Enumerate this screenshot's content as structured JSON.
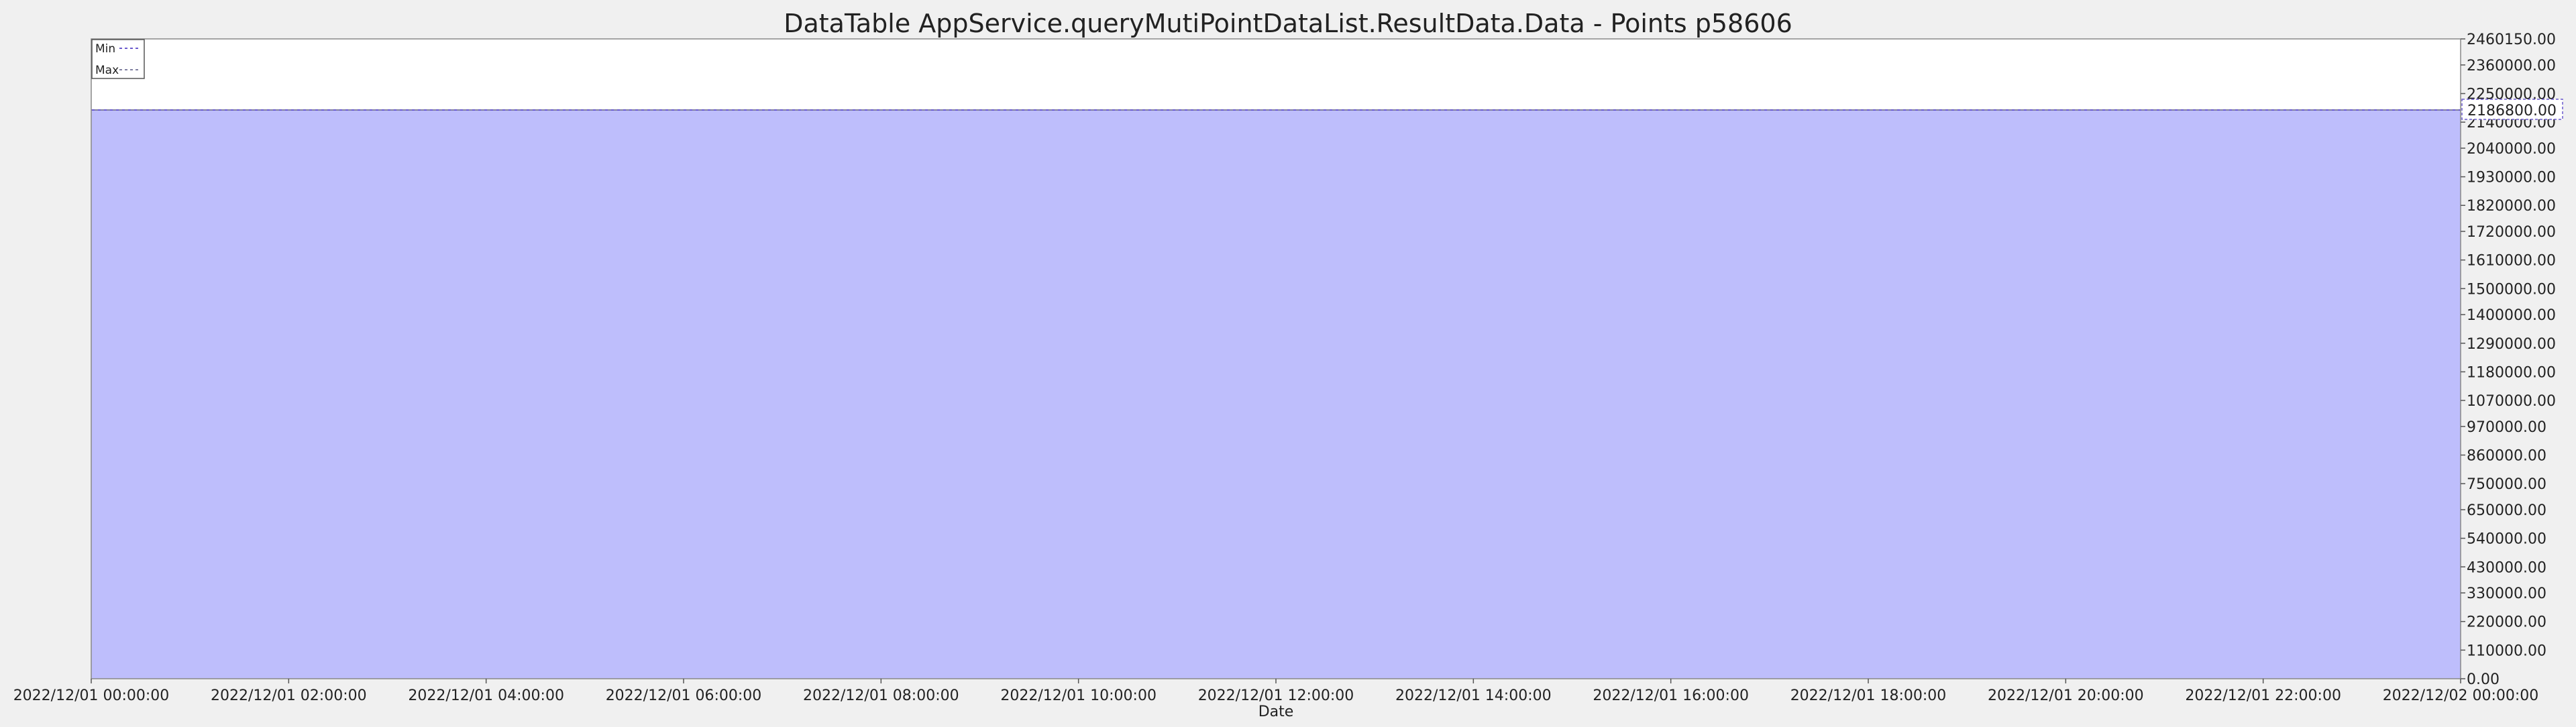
{
  "chart_data": {
    "type": "area",
    "title": "DataTable AppService.queryMutiPointDataList.ResultData.Data - Points p58606",
    "xlabel": "Date",
    "ylabel": "",
    "x_ticks": [
      "2022/12/01 00:00:00",
      "2022/12/01 02:00:00",
      "2022/12/01 04:00:00",
      "2022/12/01 06:00:00",
      "2022/12/01 08:00:00",
      "2022/12/01 10:00:00",
      "2022/12/01 12:00:00",
      "2022/12/01 14:00:00",
      "2022/12/01 16:00:00",
      "2022/12/01 18:00:00",
      "2022/12/01 20:00:00",
      "2022/12/01 22:00:00",
      "2022/12/02 00:00:00"
    ],
    "xlim": [
      "2022/12/01 00:00:00",
      "2022/12/02 00:00:00"
    ],
    "y_ticks": [
      "0.00",
      "110000.00",
      "220000.00",
      "330000.00",
      "430000.00",
      "540000.00",
      "650000.00",
      "750000.00",
      "860000.00",
      "970000.00",
      "1070000.00",
      "1180000.00",
      "1290000.00",
      "1400000.00",
      "1500000.00",
      "1610000.00",
      "1720000.00",
      "1820000.00",
      "1930000.00",
      "2040000.00",
      "2140000.00",
      "2250000.00",
      "2360000.00",
      "2460150.00"
    ],
    "ylim": [
      0,
      2460150
    ],
    "y_axis_side": "right",
    "grid": false,
    "legend_position": "top-left",
    "series": [
      {
        "name": "Min",
        "x": [
          "2022/12/01 00:00:00",
          "2022/12/02 00:00:00"
        ],
        "values": [
          2186800,
          2186800
        ],
        "color": "#6a5acd",
        "style": "dashed"
      },
      {
        "name": "Max",
        "x": [
          "2022/12/01 00:00:00",
          "2022/12/02 00:00:00"
        ],
        "values": [
          2186800,
          2186800
        ],
        "color": "#8080a0",
        "style": "dashed"
      }
    ],
    "area_fill_color": "#bebefc",
    "value_marker": {
      "label": "2186800.00",
      "value": 2186800
    }
  }
}
